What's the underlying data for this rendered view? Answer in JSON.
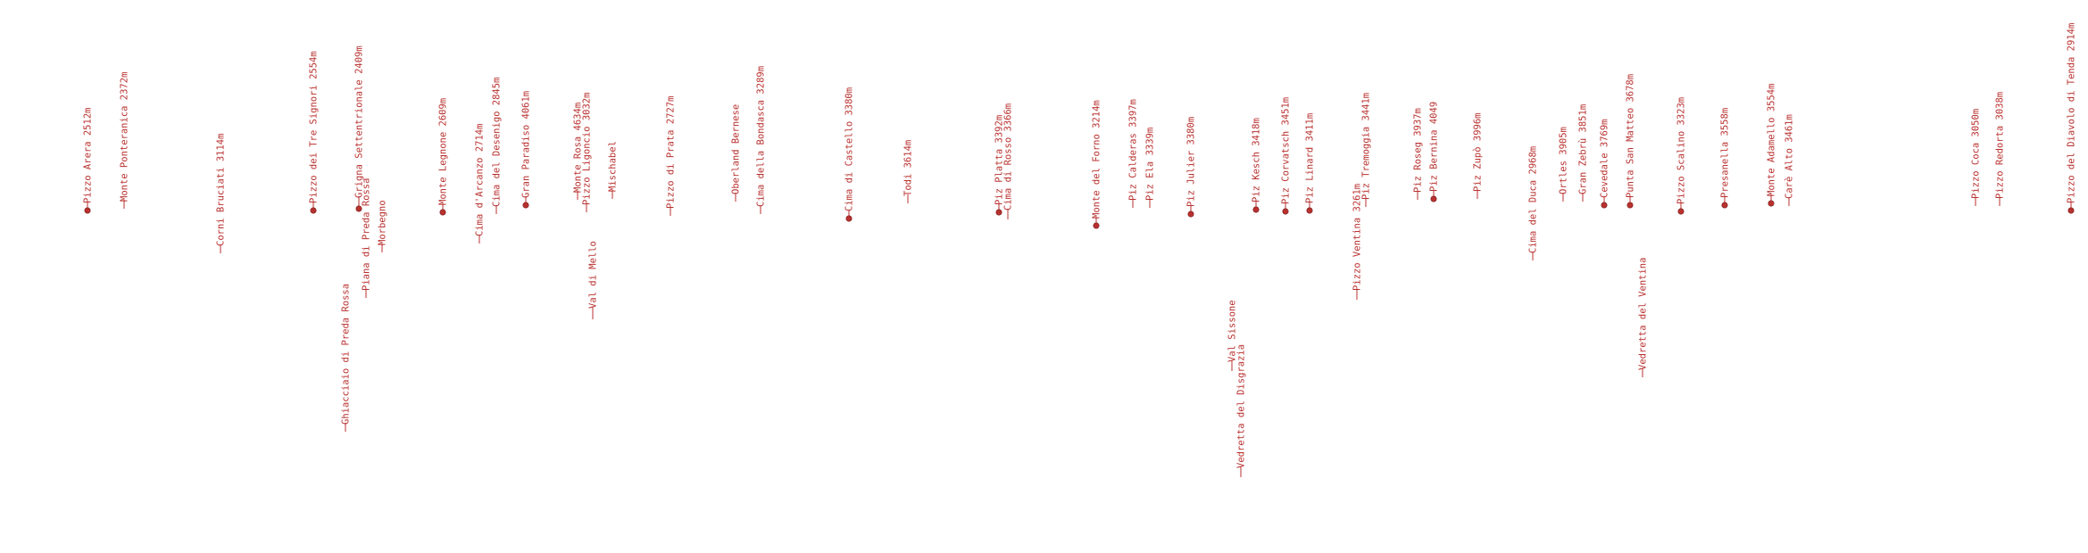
{
  "label_color": "#b8312f",
  "marker_color": "#b8312f",
  "labels": [
    {
      "text": "Pizzo Arera 2512m",
      "marker": true
    },
    {
      "text": "Monte Ponteranica 2372m",
      "marker": false
    },
    {
      "text": "Corni Bruciati 3114m",
      "marker": false
    },
    {
      "text": "Pizzo dei Tre Signori 2554m",
      "marker": true
    },
    {
      "text": "Grigna Settentrionale 2409m",
      "marker": true
    },
    {
      "text": "Ghiacciaio di Preda Rossa",
      "marker": false
    },
    {
      "text": "Piana di Preda Rossa",
      "marker": false
    },
    {
      "text": "Morbegno",
      "marker": false
    },
    {
      "text": "Monte Legnone 2609m",
      "marker": true
    },
    {
      "text": "Cima d'Arcanzo 2714m",
      "marker": false
    },
    {
      "text": "Cima del Desenigo 2845m",
      "marker": false
    },
    {
      "text": "Gran Paradiso 4061m",
      "marker": true
    },
    {
      "text": "Monte Rosa 4634m",
      "marker": false
    },
    {
      "text": "Pizzo Ligoncio 3032m",
      "marker": false
    },
    {
      "text": "Val di Mello",
      "marker": false
    },
    {
      "text": "Mischabel",
      "marker": false
    },
    {
      "text": "Pizzo di Prata 2727m",
      "marker": false
    },
    {
      "text": "Oberland Bernese",
      "marker": false
    },
    {
      "text": "Cima della Bondasca 3289m",
      "marker": false
    },
    {
      "text": "Cima di Castello 3380m",
      "marker": true
    },
    {
      "text": "Todi 3614m",
      "marker": false
    },
    {
      "text": "Piz Platta 3392m",
      "marker": true
    },
    {
      "text": "Cima di Rosso 3366m",
      "marker": false
    },
    {
      "text": "Monte del Forno 3214m",
      "marker": true
    },
    {
      "text": "Piz Calderas 3397m",
      "marker": false
    },
    {
      "text": "Piz Ela 3339m",
      "marker": false
    },
    {
      "text": "Piz Julier 3380m",
      "marker": true
    },
    {
      "text": "Val Sissone",
      "marker": false
    },
    {
      "text": "Vedretta del Disgrazia",
      "marker": false
    },
    {
      "text": "Piz Kesch 3418m",
      "marker": true
    },
    {
      "text": "Piz Corvatsch 3451m",
      "marker": true
    },
    {
      "text": "Piz Linard 3411m",
      "marker": true
    },
    {
      "text": "Pizzo Ventina 3261m",
      "marker": false
    },
    {
      "text": "Piz Tremoggia 3441m",
      "marker": false
    },
    {
      "text": "Piz Roseg 3937m",
      "marker": false
    },
    {
      "text": "Piz Bernina 4049",
      "marker": true
    },
    {
      "text": "Piz Zupò 3996m",
      "marker": false
    },
    {
      "text": "Cima del Duca 2968m",
      "marker": false
    },
    {
      "text": "Ortles 3905m",
      "marker": false
    },
    {
      "text": "Gran Zebrù 3851m",
      "marker": false
    },
    {
      "text": "Cevedale 3769m",
      "marker": true
    },
    {
      "text": "Punta San Matteo 3678m",
      "marker": true
    },
    {
      "text": "Vedretta del Ventina",
      "marker": false
    },
    {
      "text": "Pizzo Scalino 3323m",
      "marker": true
    },
    {
      "text": "Presanella 3558m",
      "marker": true
    },
    {
      "text": "Monte Adamello 3554m",
      "marker": true
    },
    {
      "text": "Carè Alto 3461m",
      "marker": false
    },
    {
      "text": "Pizzo Coca 3050m",
      "marker": false
    },
    {
      "text": "Pizzo Redorta 3038m",
      "marker": false
    },
    {
      "text": "Pizzo del Diavolo di Tenda 2914m",
      "marker": true
    }
  ]
}
